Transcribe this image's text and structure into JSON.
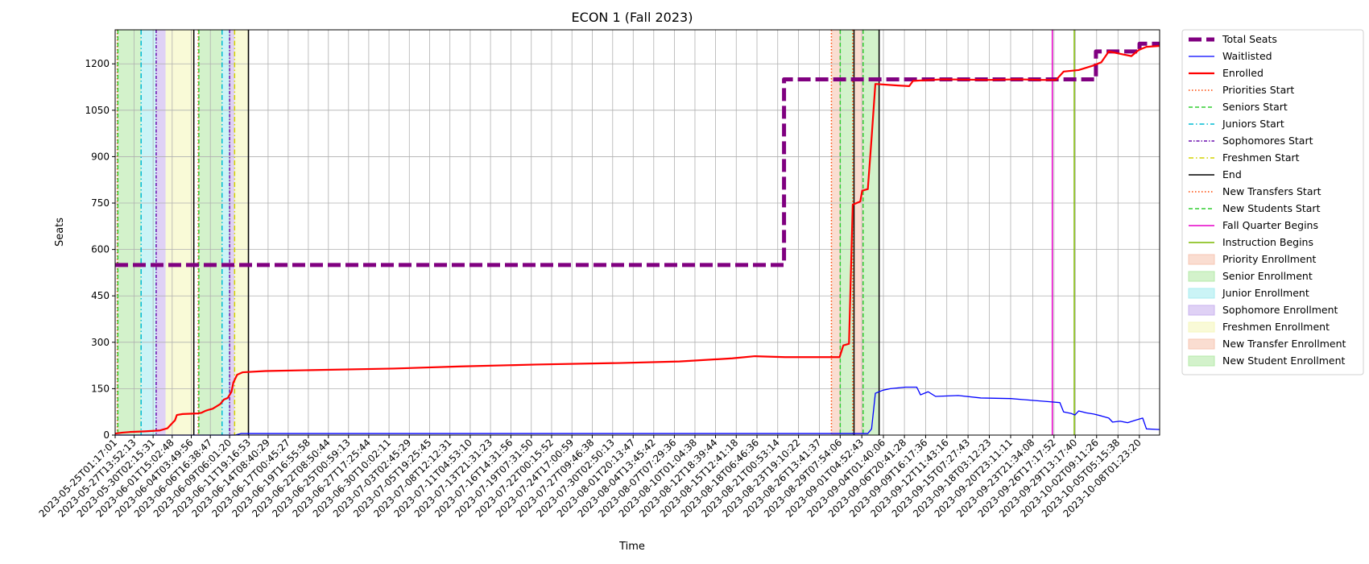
{
  "chart_data": {
    "type": "line",
    "title": "ECON 1 (Fall 2023)",
    "xlabel": "Time",
    "ylabel": "Seats",
    "ylim": [
      0,
      1310
    ],
    "yticks": [
      0,
      150,
      300,
      450,
      600,
      750,
      900,
      1050,
      1200
    ],
    "xlim": [
      "2023-05-25T01:17:01",
      "2023-10-10T18:00:00"
    ],
    "x_tick_labels": [
      "2023-05-25T01:17:01",
      "2023-05-27T13:52:13",
      "2023-05-30T02:15:31",
      "2023-06-01T15:02:48",
      "2023-06-04T03:49:56",
      "2023-06-06T16:38:47",
      "2023-06-09T06:01:20",
      "2023-06-11T19:16:53",
      "2023-06-14T08:40:29",
      "2023-06-17T00:45:27",
      "2023-06-19T16:55:58",
      "2023-06-22T08:50:44",
      "2023-06-25T00:59:13",
      "2023-06-27T17:25:44",
      "2023-06-30T10:02:11",
      "2023-07-03T02:45:29",
      "2023-07-05T19:25:45",
      "2023-07-08T12:12:31",
      "2023-07-11T04:53:10",
      "2023-07-13T21:31:23",
      "2023-07-16T14:31:56",
      "2023-07-19T07:31:50",
      "2023-07-22T00:15:52",
      "2023-07-24T17:00:59",
      "2023-07-27T09:46:38",
      "2023-07-30T02:50:13",
      "2023-08-01T20:13:47",
      "2023-08-04T13:45:42",
      "2023-08-07T07:29:36",
      "2023-08-10T01:04:38",
      "2023-08-12T18:39:44",
      "2023-08-15T12:41:18",
      "2023-08-18T06:46:36",
      "2023-08-21T00:53:14",
      "2023-08-23T19:10:22",
      "2023-08-26T13:41:37",
      "2023-08-29T07:54:06",
      "2023-09-01T04:52:43",
      "2023-09-04T01:40:06",
      "2023-09-06T20:41:28",
      "2023-09-09T16:17:36",
      "2023-09-12T11:43:16",
      "2023-09-15T07:27:43",
      "2023-09-18T03:12:23",
      "2023-09-20T23:11:11",
      "2023-09-23T21:34:08",
      "2023-09-26T17:17:52",
      "2023-09-29T13:17:40",
      "2023-10-02T09:11:26",
      "2023-10-05T05:15:38",
      "2023-10-08T01:23:20"
    ],
    "grid": true,
    "legend_position": "outside-right",
    "series": [
      {
        "name": "Total Seats",
        "color": "#800080",
        "style": "dashed-thick",
        "points": [
          [
            "2023-05-25T01:17:01",
            550
          ],
          [
            "2023-08-21T21:00:00",
            550
          ],
          [
            "2023-08-21T21:00:00",
            1150
          ],
          [
            "2023-10-02T07:00:00",
            1150
          ],
          [
            "2023-10-02T07:00:00",
            1240
          ],
          [
            "2023-10-08T02:00:00",
            1240
          ],
          [
            "2023-10-08T02:00:00",
            1265
          ],
          [
            "2023-10-10T18:00:00",
            1265
          ]
        ]
      },
      {
        "name": "Waitlisted",
        "color": "#0000ff",
        "style": "solid-thin",
        "points": [
          [
            "2023-05-25T01:17:01",
            0
          ],
          [
            "2023-06-10T00:00:00",
            0
          ],
          [
            "2023-06-10T18:00:00",
            5
          ],
          [
            "2023-08-30T12:00:00",
            5
          ],
          [
            "2023-09-02T00:00:00",
            5
          ],
          [
            "2023-09-02T12:00:00",
            20
          ],
          [
            "2023-09-03T00:00:00",
            135
          ],
          [
            "2023-09-04T00:00:00",
            145
          ],
          [
            "2023-09-05T00:00:00",
            150
          ],
          [
            "2023-09-07T00:00:00",
            155
          ],
          [
            "2023-09-08T12:00:00",
            155
          ],
          [
            "2023-09-09T00:00:00",
            130
          ],
          [
            "2023-09-10T00:00:00",
            140
          ],
          [
            "2023-09-11T00:00:00",
            125
          ],
          [
            "2023-09-14T00:00:00",
            128
          ],
          [
            "2023-09-17T00:00:00",
            120
          ],
          [
            "2023-09-21T00:00:00",
            118
          ],
          [
            "2023-09-24T00:00:00",
            112
          ],
          [
            "2023-09-26T00:00:00",
            108
          ],
          [
            "2023-09-27T12:00:00",
            105
          ],
          [
            "2023-09-28T00:00:00",
            75
          ],
          [
            "2023-09-29T00:00:00",
            70
          ],
          [
            "2023-09-29T12:00:00",
            65
          ],
          [
            "2023-09-30T00:00:00",
            78
          ],
          [
            "2023-10-01T00:00:00",
            72
          ],
          [
            "2023-10-02T00:00:00",
            68
          ],
          [
            "2023-10-03T00:00:00",
            62
          ],
          [
            "2023-10-04T00:00:00",
            55
          ],
          [
            "2023-10-04T12:00:00",
            42
          ],
          [
            "2023-10-05T12:00:00",
            45
          ],
          [
            "2023-10-06T12:00:00",
            40
          ],
          [
            "2023-10-07T12:00:00",
            48
          ],
          [
            "2023-10-08T12:00:00",
            55
          ],
          [
            "2023-10-09T00:00:00",
            20
          ],
          [
            "2023-10-10T18:00:00",
            18
          ]
        ]
      },
      {
        "name": "Enrolled",
        "color": "#ff0000",
        "style": "solid-thick",
        "points": [
          [
            "2023-05-25T01:17:01",
            5
          ],
          [
            "2023-05-26T00:00:00",
            8
          ],
          [
            "2023-05-27T00:00:00",
            10
          ],
          [
            "2023-05-28T00:00:00",
            11
          ],
          [
            "2023-05-29T00:00:00",
            12
          ],
          [
            "2023-05-31T00:00:00",
            15
          ],
          [
            "2023-06-01T00:00:00",
            22
          ],
          [
            "2023-06-01T12:00:00",
            35
          ],
          [
            "2023-06-02T00:00:00",
            48
          ],
          [
            "2023-06-02T06:00:00",
            65
          ],
          [
            "2023-06-03T00:00:00",
            68
          ],
          [
            "2023-06-05T00:00:00",
            70
          ],
          [
            "2023-06-05T12:00:00",
            72
          ],
          [
            "2023-06-06T00:00:00",
            78
          ],
          [
            "2023-06-06T12:00:00",
            82
          ],
          [
            "2023-06-07T00:00:00",
            85
          ],
          [
            "2023-06-08T00:00:00",
            100
          ],
          [
            "2023-06-08T12:00:00",
            115
          ],
          [
            "2023-06-09T00:00:00",
            120
          ],
          [
            "2023-06-09T12:00:00",
            140
          ],
          [
            "2023-06-09T18:00:00",
            170
          ],
          [
            "2023-06-10T06:00:00",
            195
          ],
          [
            "2023-06-11T00:00:00",
            203
          ],
          [
            "2023-06-14T00:00:00",
            207
          ],
          [
            "2023-06-20T00:00:00",
            210
          ],
          [
            "2023-07-01T00:00:00",
            215
          ],
          [
            "2023-07-10T00:00:00",
            222
          ],
          [
            "2023-07-20T00:00:00",
            228
          ],
          [
            "2023-07-31T00:00:00",
            233
          ],
          [
            "2023-08-08T00:00:00",
            238
          ],
          [
            "2023-08-15T00:00:00",
            248
          ],
          [
            "2023-08-18T00:00:00",
            255
          ],
          [
            "2023-08-22T00:00:00",
            252
          ],
          [
            "2023-08-28T00:00:00",
            252
          ],
          [
            "2023-08-29T06:00:00",
            252
          ],
          [
            "2023-08-29T18:00:00",
            290
          ],
          [
            "2023-08-30T12:00:00",
            295
          ],
          [
            "2023-08-31T00:00:00",
            745
          ],
          [
            "2023-09-01T00:00:00",
            755
          ],
          [
            "2023-09-01T06:00:00",
            790
          ],
          [
            "2023-09-02T00:00:00",
            795
          ],
          [
            "2023-09-02T12:00:00",
            960
          ],
          [
            "2023-09-03T00:00:00",
            1135
          ],
          [
            "2023-09-06T00:00:00",
            1130
          ],
          [
            "2023-09-07T12:00:00",
            1128
          ],
          [
            "2023-09-08T00:00:00",
            1145
          ],
          [
            "2023-09-12T00:00:00",
            1150
          ],
          [
            "2023-09-18T00:00:00",
            1148
          ],
          [
            "2023-09-22T00:00:00",
            1150
          ],
          [
            "2023-09-25T00:00:00",
            1148
          ],
          [
            "2023-09-27T00:00:00",
            1148
          ],
          [
            "2023-09-28T00:00:00",
            1175
          ],
          [
            "2023-09-30T00:00:00",
            1180
          ],
          [
            "2023-10-02T00:00:00",
            1195
          ],
          [
            "2023-10-03T00:00:00",
            1205
          ],
          [
            "2023-10-04T00:00:00",
            1240
          ],
          [
            "2023-10-05T00:00:00",
            1235
          ],
          [
            "2023-10-07T00:00:00",
            1225
          ],
          [
            "2023-10-08T00:00:00",
            1245
          ],
          [
            "2023-10-09T00:00:00",
            1255
          ],
          [
            "2023-10-10T18:00:00",
            1258
          ]
        ]
      }
    ],
    "vlines": [
      {
        "name": "Priorities Start",
        "color": "#ff4500",
        "style": "dotted",
        "x": [
          "2023-05-25T08:00:00",
          "2023-06-05T02:00:00",
          "2023-08-28T04:00:00"
        ]
      },
      {
        "name": "Seniors Start",
        "color": "#32cd32",
        "style": "dashed",
        "x": [
          "2023-05-25T10:00:00",
          "2023-06-05T04:00:00",
          "2023-08-29T08:00:00"
        ]
      },
      {
        "name": "Juniors Start",
        "color": "#00bcd4",
        "style": "dashdot",
        "x": [
          "2023-05-28T12:00:00",
          "2023-06-08T06:00:00"
        ]
      },
      {
        "name": "Sophomores Start",
        "color": "#6a0dad",
        "style": "dashdot-dense",
        "x": [
          "2023-05-30T12:00:00",
          "2023-06-09T06:00:00"
        ]
      },
      {
        "name": "Freshmen Start",
        "color": "#d4d400",
        "style": "dashdot",
        "x": [
          "2023-06-09T22:00:00"
        ]
      },
      {
        "name": "End",
        "color": "#000000",
        "style": "solid",
        "x": [
          "2023-06-04T12:00:00",
          "2023-06-11T18:00:00",
          "2023-08-31T04:00:00",
          "2023-09-03T12:00:00"
        ]
      },
      {
        "name": "New Transfers Start",
        "color": "#ff4500",
        "style": "dotted",
        "x": [
          "2023-08-31T00:00:00"
        ]
      },
      {
        "name": "New Students Start",
        "color": "#32cd32",
        "style": "dashed",
        "x": [
          "2023-09-01T09:00:00"
        ]
      },
      {
        "name": "Fall Quarter Begins",
        "color": "#e600c8",
        "style": "solid",
        "x": [
          "2023-09-26T12:00:00"
        ]
      },
      {
        "name": "Instruction Begins",
        "color": "#7cb800",
        "style": "solid",
        "x": [
          "2023-09-29T10:00:00"
        ]
      }
    ],
    "spans": [
      {
        "name": "Priority Enrollment",
        "color": "#f7c6b3",
        "ranges": [
          [
            "2023-05-25T08:00:00",
            "2023-05-25T10:00:00"
          ],
          [
            "2023-06-05T02:00:00",
            "2023-06-05T04:00:00"
          ],
          [
            "2023-08-28T04:00:00",
            "2023-08-29T08:00:00"
          ]
        ]
      },
      {
        "name": "Senior Enrollment",
        "color": "#b5eaa8",
        "ranges": [
          [
            "2023-05-25T10:00:00",
            "2023-05-28T12:00:00"
          ],
          [
            "2023-06-05T04:00:00",
            "2023-06-08T06:00:00"
          ],
          [
            "2023-08-29T08:00:00",
            "2023-08-31T04:00:00"
          ]
        ]
      },
      {
        "name": "Junior Enrollment",
        "color": "#a8ecf0",
        "ranges": [
          [
            "2023-05-28T12:00:00",
            "2023-05-30T12:00:00"
          ],
          [
            "2023-06-08T06:00:00",
            "2023-06-09T06:00:00"
          ]
        ]
      },
      {
        "name": "Sophomore Enrollment",
        "color": "#c9b3ef",
        "ranges": [
          [
            "2023-05-30T12:00:00",
            "2023-05-31T18:00:00"
          ],
          [
            "2023-06-09T06:00:00",
            "2023-06-09T22:00:00"
          ]
        ]
      },
      {
        "name": "Freshmen Enrollment",
        "color": "#f5f7bd",
        "ranges": [
          [
            "2023-05-31T18:00:00",
            "2023-06-04T12:00:00"
          ],
          [
            "2023-06-09T22:00:00",
            "2023-06-11T18:00:00"
          ]
        ]
      },
      {
        "name": "New Transfer Enrollment",
        "color": "#f7c6b3",
        "ranges": [
          [
            "2023-08-31T04:00:00",
            "2023-09-01T09:00:00"
          ]
        ]
      },
      {
        "name": "New Student Enrollment",
        "color": "#b5eaa8",
        "ranges": [
          [
            "2023-09-01T09:00:00",
            "2023-09-03T12:00:00"
          ]
        ]
      }
    ]
  }
}
